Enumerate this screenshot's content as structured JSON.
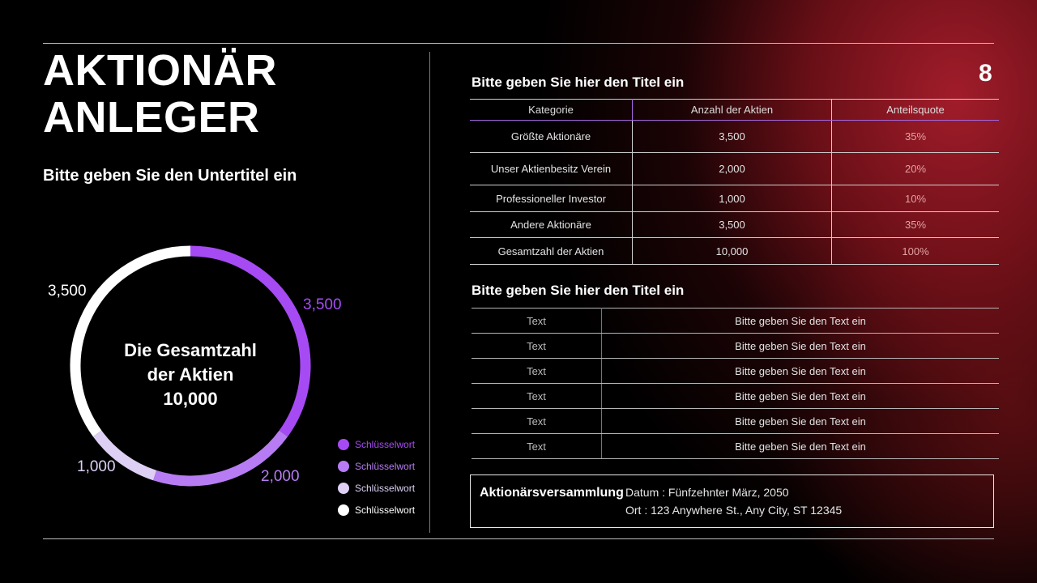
{
  "page": {
    "title_line1": "AKTIONÄR",
    "title_line2": "ANLEGER",
    "subtitle": "Bitte geben Sie den Untertitel ein",
    "page_number": "8"
  },
  "donut": {
    "center_line1": "Die Gesamtzahl",
    "center_line2": "der Aktien",
    "center_line3": "10,000",
    "segments": [
      {
        "label": "3,500",
        "value": 3500,
        "color": "#a64bf4"
      },
      {
        "label": "2,000",
        "value": 2000,
        "color": "#b77cf3"
      },
      {
        "label": "1,000",
        "value": 1000,
        "color": "#ddd0f4"
      },
      {
        "label": "3,500",
        "value": 3500,
        "color": "#ffffff"
      }
    ]
  },
  "legend": [
    {
      "label": "Schlüsselwort",
      "color": "#a64bf4"
    },
    {
      "label": "Schlüsselwort",
      "color": "#b77cf3"
    },
    {
      "label": "Schlüsselwort",
      "color": "#ddd0f4"
    },
    {
      "label": "Schlüsselwort",
      "color": "#ffffff"
    }
  ],
  "table1": {
    "title": "Bitte geben Sie hier den Titel ein",
    "headers": [
      "Kategorie",
      "Anzahl der Aktien",
      "Anteilsquote"
    ],
    "rows": [
      [
        "Größte Aktionäre",
        "3,500",
        "35%"
      ],
      [
        "Unser Aktienbesitz Verein",
        "2,000",
        "20%"
      ],
      [
        "Professioneller Investor",
        "1,000",
        "10%"
      ],
      [
        "Andere Aktionäre",
        "3,500",
        "35%"
      ],
      [
        "Gesamtzahl der Aktien",
        "10,000",
        "100%"
      ]
    ]
  },
  "table2": {
    "title": "Bitte geben Sie hier den Titel ein",
    "rows": [
      [
        "Text",
        "Bitte geben Sie den Text ein"
      ],
      [
        "Text",
        "Bitte geben Sie den Text ein"
      ],
      [
        "Text",
        "Bitte geben Sie den Text ein"
      ],
      [
        "Text",
        "Bitte geben Sie den Text ein"
      ],
      [
        "Text",
        "Bitte geben Sie den Text ein"
      ],
      [
        "Text",
        "Bitte geben Sie den Text ein"
      ]
    ]
  },
  "meeting": {
    "title": "Aktionärsversammlung",
    "date": "Datum : Fünfzehnter März, 2050",
    "location": "Ort : 123 Anywhere St., Any City, ST 12345"
  }
}
